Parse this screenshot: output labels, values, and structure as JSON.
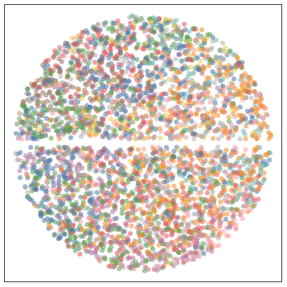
{
  "chart_data": {
    "type": "scatter",
    "title": "",
    "xlabel": "",
    "ylabel": "",
    "xlim": [
      -1.08,
      1.08
    ],
    "ylim": [
      -1.08,
      1.08
    ],
    "grid": false,
    "axes_ticks": false,
    "marker": "circle",
    "alpha": 0.55,
    "gap_between_halves": {
      "y_from": -0.03,
      "y_to": 0.03
    },
    "point_count_estimate": 3600,
    "colors": [
      "#4e79a7",
      "#f28e2b",
      "#e15759",
      "#76b7b2",
      "#59a14f",
      "#edc948",
      "#b07aa1",
      "#ff9da7",
      "#9c755f",
      "#bab0ac"
    ],
    "series": [
      {
        "color": "#4e79a7",
        "regions": [
          {
            "cx": 0.05,
            "cy": 0.58,
            "rx": 0.45,
            "ry": 0.4,
            "weight": 1.0
          },
          {
            "cx": -0.72,
            "cy": -0.38,
            "rx": 0.3,
            "ry": 0.35,
            "weight": 1.2
          },
          {
            "cx": 0.05,
            "cy": -0.22,
            "rx": 0.3,
            "ry": 0.25,
            "weight": 0.7
          }
        ]
      },
      {
        "color": "#f28e2b",
        "regions": [
          {
            "cx": 0.72,
            "cy": 0.42,
            "rx": 0.26,
            "ry": 0.34,
            "weight": 1.2
          },
          {
            "cx": 0.38,
            "cy": -0.18,
            "rx": 0.35,
            "ry": 0.3,
            "weight": 1.1
          },
          {
            "cx": -0.1,
            "cy": -0.45,
            "rx": 0.35,
            "ry": 0.3,
            "weight": 0.6
          }
        ]
      },
      {
        "color": "#e15759",
        "regions": [
          {
            "cx": -0.3,
            "cy": 0.7,
            "rx": 0.4,
            "ry": 0.25,
            "weight": 1.0
          },
          {
            "cx": 0.25,
            "cy": -0.25,
            "rx": 0.4,
            "ry": 0.3,
            "weight": 1.0
          },
          {
            "cx": -0.15,
            "cy": -0.75,
            "rx": 0.3,
            "ry": 0.2,
            "weight": 0.5
          }
        ]
      },
      {
        "color": "#76b7b2",
        "regions": [
          {
            "cx": 0.78,
            "cy": -0.25,
            "rx": 0.22,
            "ry": 0.22,
            "weight": 1.1
          },
          {
            "cx": 0.35,
            "cy": 0.58,
            "rx": 0.3,
            "ry": 0.3,
            "weight": 0.6
          }
        ]
      },
      {
        "color": "#59a14f",
        "regions": [
          {
            "cx": 0.05,
            "cy": 0.88,
            "rx": 0.45,
            "ry": 0.14,
            "weight": 0.9
          },
          {
            "cx": -0.7,
            "cy": 0.22,
            "rx": 0.3,
            "ry": 0.22,
            "weight": 0.9
          },
          {
            "cx": -0.38,
            "cy": -0.62,
            "rx": 0.32,
            "ry": 0.3,
            "weight": 1.0
          },
          {
            "cx": 0.15,
            "cy": -0.45,
            "rx": 0.35,
            "ry": 0.3,
            "weight": 0.6
          }
        ]
      },
      {
        "color": "#edc948",
        "regions": [
          {
            "cx": 0.48,
            "cy": 0.82,
            "rx": 0.3,
            "ry": 0.16,
            "weight": 0.9
          },
          {
            "cx": -0.05,
            "cy": 0.14,
            "rx": 0.35,
            "ry": 0.1,
            "weight": 0.8
          },
          {
            "cx": 0.18,
            "cy": -0.35,
            "rx": 0.2,
            "ry": 0.15,
            "weight": 0.3
          }
        ]
      },
      {
        "color": "#b07aa1",
        "regions": [
          {
            "cx": -0.7,
            "cy": -0.12,
            "rx": 0.3,
            "ry": 0.12,
            "weight": 0.9
          },
          {
            "cx": 0.08,
            "cy": -0.85,
            "rx": 0.35,
            "ry": 0.16,
            "weight": 1.0
          },
          {
            "cx": -0.35,
            "cy": -0.3,
            "rx": 0.25,
            "ry": 0.2,
            "weight": 0.5
          }
        ]
      },
      {
        "color": "#ff9da7",
        "regions": [
          {
            "cx": 0.25,
            "cy": 0.2,
            "rx": 0.4,
            "ry": 0.15,
            "weight": 0.9
          },
          {
            "cx": 0.65,
            "cy": -0.62,
            "rx": 0.25,
            "ry": 0.25,
            "weight": 1.1
          },
          {
            "cx": -0.2,
            "cy": -0.15,
            "rx": 0.3,
            "ry": 0.15,
            "weight": 0.6
          }
        ]
      },
      {
        "color": "#9c755f",
        "regions": [
          {
            "cx": -0.72,
            "cy": 0.52,
            "rx": 0.22,
            "ry": 0.22,
            "weight": 1.0
          },
          {
            "cx": -0.25,
            "cy": 0.3,
            "rx": 0.3,
            "ry": 0.2,
            "weight": 0.4
          }
        ]
      },
      {
        "color": "#bab0ac",
        "regions": [
          {
            "cx": 0.0,
            "cy": 0.3,
            "rx": 0.55,
            "ry": 0.4,
            "weight": 0.6
          },
          {
            "cx": 0.0,
            "cy": -0.4,
            "rx": 0.6,
            "ry": 0.45,
            "weight": 0.4
          }
        ]
      }
    ]
  }
}
